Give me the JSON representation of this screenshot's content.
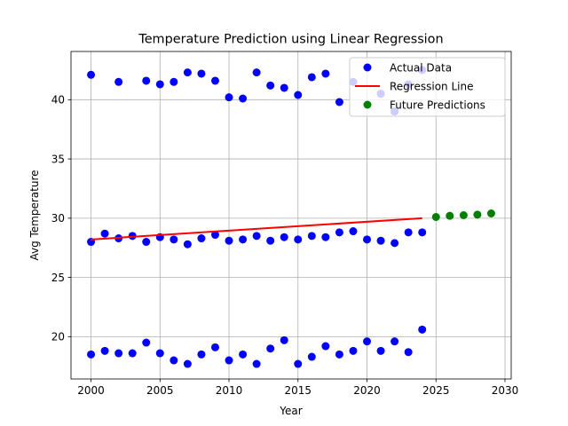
{
  "chart_data": {
    "type": "scatter",
    "title": "Temperature Prediction using Linear Regression",
    "xlabel": "Year",
    "ylabel": "Avg Temperature",
    "xlim": [
      1998.55,
      2030.45
    ],
    "ylim": [
      16.43,
      44.07
    ],
    "xticks": [
      2000,
      2005,
      2010,
      2015,
      2020,
      2025,
      2030
    ],
    "yticks": [
      20,
      25,
      30,
      35,
      40
    ],
    "grid": true,
    "legend_position": "top-right",
    "series": [
      {
        "name": "Actual Data",
        "kind": "scatter",
        "color": "#0000ff",
        "points": [
          [
            2000,
            42.1
          ],
          [
            2000,
            28.0
          ],
          [
            2000,
            18.5
          ],
          [
            2001,
            28.7
          ],
          [
            2001,
            18.8
          ],
          [
            2002,
            41.5
          ],
          [
            2002,
            28.3
          ],
          [
            2002,
            18.6
          ],
          [
            2003,
            28.5
          ],
          [
            2003,
            18.6
          ],
          [
            2004,
            41.6
          ],
          [
            2004,
            28.0
          ],
          [
            2004,
            19.5
          ],
          [
            2005,
            41.3
          ],
          [
            2005,
            28.4
          ],
          [
            2005,
            18.6
          ],
          [
            2006,
            41.5
          ],
          [
            2006,
            28.2
          ],
          [
            2006,
            18.0
          ],
          [
            2007,
            42.3
          ],
          [
            2007,
            27.8
          ],
          [
            2007,
            17.7
          ],
          [
            2008,
            42.2
          ],
          [
            2008,
            28.3
          ],
          [
            2008,
            18.5
          ],
          [
            2009,
            41.6
          ],
          [
            2009,
            28.6
          ],
          [
            2009,
            19.1
          ],
          [
            2010,
            40.2
          ],
          [
            2010,
            28.1
          ],
          [
            2010,
            18.0
          ],
          [
            2011,
            40.1
          ],
          [
            2011,
            28.2
          ],
          [
            2011,
            18.5
          ],
          [
            2012,
            42.3
          ],
          [
            2012,
            28.5
          ],
          [
            2012,
            17.7
          ],
          [
            2013,
            41.2
          ],
          [
            2013,
            28.1
          ],
          [
            2013,
            19.0
          ],
          [
            2014,
            41.0
          ],
          [
            2014,
            28.4
          ],
          [
            2014,
            19.7
          ],
          [
            2015,
            40.4
          ],
          [
            2015,
            28.2
          ],
          [
            2015,
            17.7
          ],
          [
            2016,
            41.9
          ],
          [
            2016,
            28.5
          ],
          [
            2016,
            18.3
          ],
          [
            2017,
            42.2
          ],
          [
            2017,
            28.4
          ],
          [
            2017,
            19.2
          ],
          [
            2018,
            39.8
          ],
          [
            2018,
            28.8
          ],
          [
            2018,
            18.5
          ],
          [
            2019,
            41.5
          ],
          [
            2019,
            28.9
          ],
          [
            2019,
            18.8
          ],
          [
            2020,
            28.2
          ],
          [
            2020,
            19.6
          ],
          [
            2021,
            40.5
          ],
          [
            2021,
            28.1
          ],
          [
            2021,
            18.8
          ],
          [
            2022,
            39.0
          ],
          [
            2022,
            27.9
          ],
          [
            2022,
            19.6
          ],
          [
            2023,
            41.3
          ],
          [
            2023,
            28.8
          ],
          [
            2023,
            18.7
          ],
          [
            2024,
            42.5
          ],
          [
            2024,
            28.8
          ],
          [
            2024,
            20.6
          ]
        ]
      },
      {
        "name": "Regression Line",
        "kind": "line",
        "color": "#ff0000",
        "points": [
          [
            2000,
            28.2
          ],
          [
            2024,
            30.0
          ]
        ]
      },
      {
        "name": "Future Predictions",
        "kind": "scatter",
        "color": "#008000",
        "points": [
          [
            2025,
            30.1
          ],
          [
            2026,
            30.2
          ],
          [
            2027,
            30.25
          ],
          [
            2028,
            30.3
          ],
          [
            2029,
            30.4
          ]
        ]
      }
    ]
  }
}
